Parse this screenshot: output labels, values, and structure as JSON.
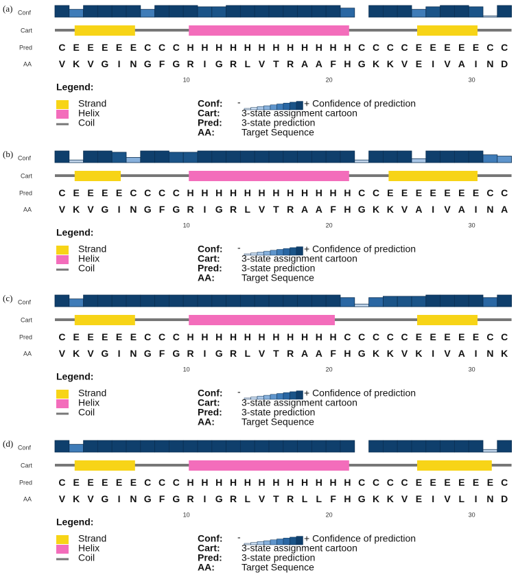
{
  "panels": [
    {
      "label": "(a)",
      "row_labels": {
        "conf": "Conf",
        "cart": "Cart",
        "pred": "Pred",
        "aa": "AA"
      },
      "conf": [
        9,
        6,
        9,
        9,
        9,
        9,
        6,
        9,
        9,
        9,
        8,
        8,
        9,
        9,
        9,
        9,
        9,
        9,
        9,
        9,
        7,
        0,
        9,
        9,
        9,
        6,
        8,
        9,
        9,
        8,
        1,
        9
      ],
      "pred": "CEEEEECCCHHHHHHHHHHHHCCCCEEEEECC",
      "aa": "VKVGINGFGRIGRLVTRAAFHGKKVEIVAIND",
      "positions": [
        10,
        20,
        30
      ],
      "legend": {
        "title": "Legend:",
        "strand": "Strand",
        "helix": "Helix",
        "coil": "Coil",
        "conf_key": "Conf:",
        "conf_low": "-",
        "conf_text": "+ Confidence of prediction",
        "cart_key": "Cart:",
        "cart_text": "3-state assignment cartoon",
        "pred_key": "Pred:",
        "pred_text": "3-state prediction",
        "aa_key": "AA:",
        "aa_text": "Target Sequence"
      }
    },
    {
      "label": "(b)",
      "row_labels": {
        "conf": "Conf",
        "cart": "Cart",
        "pred": "Pred",
        "aa": "AA"
      },
      "conf": [
        9,
        2,
        9,
        9,
        8,
        4,
        9,
        9,
        8,
        8,
        9,
        9,
        9,
        9,
        9,
        9,
        9,
        9,
        9,
        9,
        9,
        2,
        9,
        9,
        9,
        3,
        9,
        9,
        9,
        9,
        6,
        5
      ],
      "pred": "CEEEECCCCHHHHHHHHHHHHCCEEEEEEECC",
      "aa": "VKVGINGFGRIGRLVTRAAFHGKKVAIVAINA",
      "positions": [
        10,
        20,
        30
      ],
      "legend": {
        "title": "Legend:",
        "strand": "Strand",
        "helix": "Helix",
        "coil": "Coil",
        "conf_key": "Conf:",
        "conf_low": "-",
        "conf_text": "+ Confidence of prediction",
        "cart_key": "Cart:",
        "cart_text": "3-state assignment cartoon",
        "pred_key": "Pred:",
        "pred_text": "3-state prediction",
        "aa_key": "AA:",
        "aa_text": "Target Sequence"
      }
    },
    {
      "label": "(c)",
      "row_labels": {
        "conf": "Conf",
        "cart": "Cart",
        "pred": "Pred",
        "aa": "AA"
      },
      "conf": [
        9,
        6,
        9,
        9,
        9,
        9,
        9,
        9,
        9,
        9,
        9,
        9,
        9,
        9,
        9,
        9,
        9,
        9,
        9,
        9,
        7,
        2,
        7,
        8,
        8,
        8,
        9,
        9,
        9,
        9,
        7,
        9
      ],
      "pred": "CEEEEECCCHHHHHHHHHHHCCCCCEEEEECC",
      "aa": "VKVGINGFGRIGRLVTRAAFHGKKVKIVAINK",
      "positions": [
        10,
        20,
        30
      ],
      "legend": {
        "title": "Legend:",
        "strand": "Strand",
        "helix": "Helix",
        "coil": "Coil",
        "conf_key": "Conf:",
        "conf_low": "-",
        "conf_text": "+ Confidence of prediction",
        "cart_key": "Cart:",
        "cart_text": "3-state assignment cartoon",
        "pred_key": "Pred:",
        "pred_text": "3-state prediction",
        "aa_key": "AA:",
        "aa_text": "Target Sequence"
      }
    },
    {
      "label": "(d)",
      "row_labels": {
        "conf": "Conf",
        "cart": "Cart",
        "pred": "Pred",
        "aa": "AA"
      },
      "conf": [
        9,
        6,
        9,
        9,
        9,
        9,
        9,
        9,
        9,
        9,
        9,
        9,
        9,
        9,
        9,
        9,
        9,
        9,
        9,
        9,
        9,
        0,
        9,
        9,
        9,
        9,
        9,
        9,
        9,
        9,
        2,
        9
      ],
      "pred": "CEEEEECCCHHHHHHHHHHHHCCCCEEEEEEC",
      "aa": "VKVGINGFGRIGRLVTRLLFHGKKVEIVLIND",
      "positions": [
        10,
        20,
        30
      ],
      "legend": {
        "title": "Legend:",
        "strand": "Strand",
        "helix": "Helix",
        "coil": "Coil",
        "conf_key": "Conf:",
        "conf_low": "-",
        "conf_text": "+ Confidence of prediction",
        "cart_key": "Cart:",
        "cart_text": "3-state assignment cartoon",
        "pred_key": "Pred:",
        "pred_text": "3-state prediction",
        "aa_key": "AA:",
        "aa_text": "Target Sequence"
      }
    }
  ]
}
